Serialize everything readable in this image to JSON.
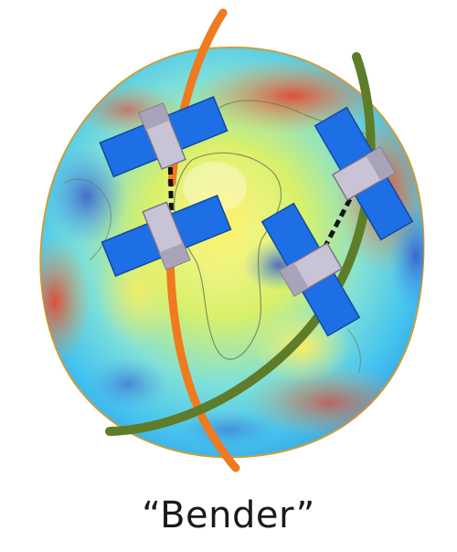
{
  "caption": "“Bender”",
  "colors": {
    "orbit_polar": "#f07a1e",
    "orbit_inclined": "#5e7d2a",
    "solar_panel": "#1e6ee6",
    "satellite_body": "#c9c3d6",
    "background": "#ffffff"
  },
  "elements": {
    "globe": "earth-gravity-field-globe",
    "orbits": [
      "polar-orbit",
      "inclined-orbit"
    ],
    "satellite_pairs": 2
  }
}
